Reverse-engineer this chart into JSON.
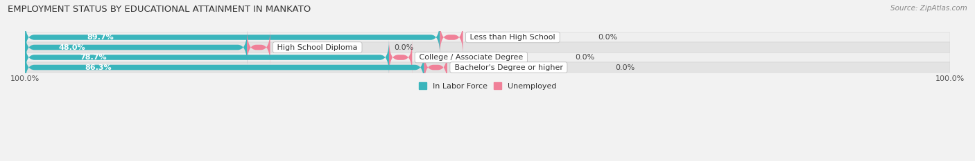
{
  "title": "EMPLOYMENT STATUS BY EDUCATIONAL ATTAINMENT IN MANKATO",
  "source": "Source: ZipAtlas.com",
  "categories": [
    "Less than High School",
    "High School Diploma",
    "College / Associate Degree",
    "Bachelor's Degree or higher"
  ],
  "labor_force_values": [
    89.7,
    48.0,
    78.7,
    86.3
  ],
  "unemployed_values": [
    0.0,
    0.0,
    0.0,
    0.0
  ],
  "labor_force_color": "#3ab5bc",
  "unemployed_color": "#f08098",
  "bg_light": "#efefef",
  "bg_dark": "#e3e3e3",
  "title_fontsize": 9.5,
  "label_fontsize": 8.0,
  "value_fontsize": 8.0,
  "tick_fontsize": 8.0,
  "source_fontsize": 7.5,
  "bar_height": 0.52,
  "legend_labels": [
    "In Labor Force",
    "Unemployed"
  ]
}
